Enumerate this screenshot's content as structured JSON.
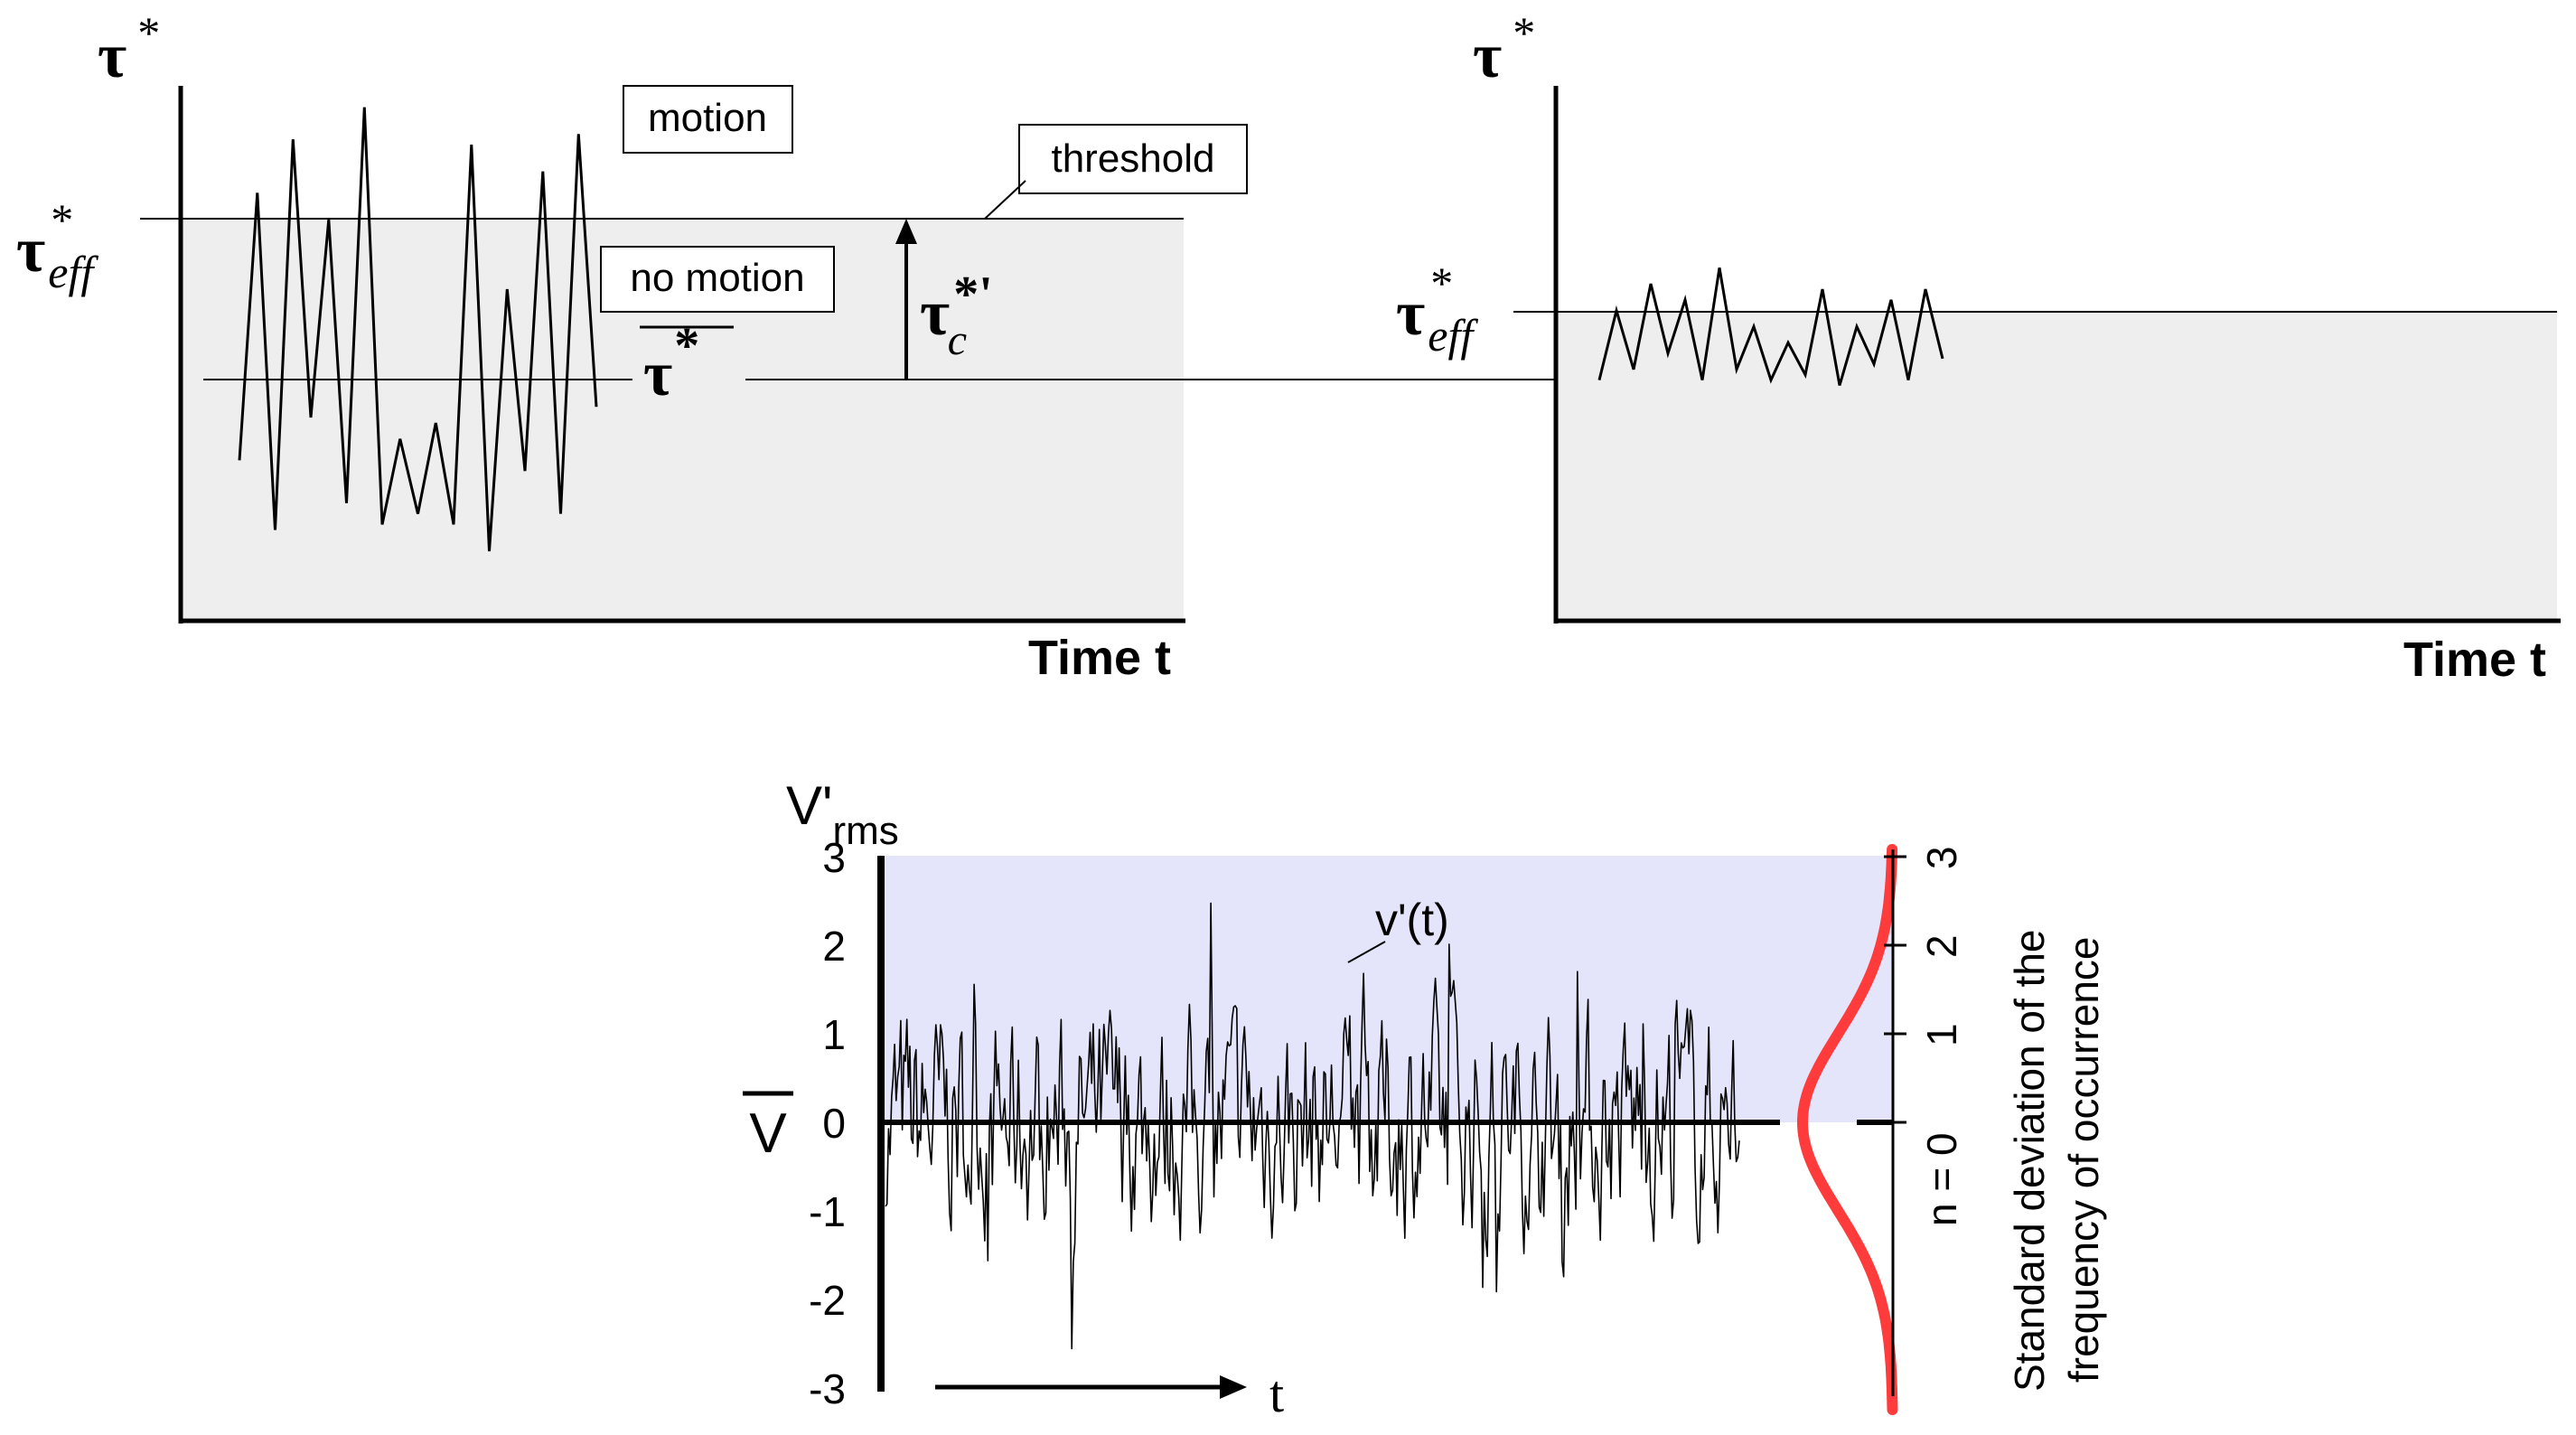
{
  "panel_left": {
    "y_label_sym": "τ",
    "y_label_sup": "*",
    "eff_sym": "τ",
    "eff_sup": "*",
    "eff_sub": "eff",
    "motion_label": "motion",
    "no_motion_label": "no motion",
    "threshold_label": "threshold",
    "mean_sym": "τ",
    "mean_sup": "*",
    "tc_sym": "τ",
    "tc_sup": "*'",
    "tc_sub": "c",
    "x_label": "Time  t",
    "shear_trace": [
      0.3,
      0.8,
      0.17,
      0.9,
      0.38,
      0.75,
      0.22,
      0.96,
      0.18,
      0.34,
      0.2,
      0.37,
      0.18,
      0.89,
      0.13,
      0.62,
      0.28,
      0.84,
      0.2,
      0.91,
      0.4
    ]
  },
  "panel_right": {
    "y_label_sym": "τ",
    "y_label_sup": "*",
    "eff_sym": "τ",
    "eff_sup": "*",
    "eff_sub": "eff",
    "x_label": "Time  t",
    "shear_trace": [
      0.45,
      0.58,
      0.47,
      0.63,
      0.5,
      0.6,
      0.45,
      0.66,
      0.47,
      0.55,
      0.45,
      0.52,
      0.46,
      0.62,
      0.44,
      0.55,
      0.48,
      0.6,
      0.45,
      0.62,
      0.49
    ]
  },
  "panel_bottom": {
    "y_axis_label_main": "V'",
    "y_axis_label_sub": "rms",
    "mean_label": "V",
    "left_ticks": [
      "3",
      "2",
      "1",
      "0",
      "-1",
      "-2",
      "-3"
    ],
    "right_ticks": [
      "3",
      "2",
      "1",
      "n = 0"
    ],
    "series_label": "v'(t)",
    "time_label": "t",
    "right_axis_title_line1": "Standard deviation of the",
    "right_axis_title_line2": "frequency of occurrence",
    "colors": {
      "band": "#e4e4fb",
      "curve": "#ff3b3b",
      "shade": "#eeeeee"
    }
  }
}
